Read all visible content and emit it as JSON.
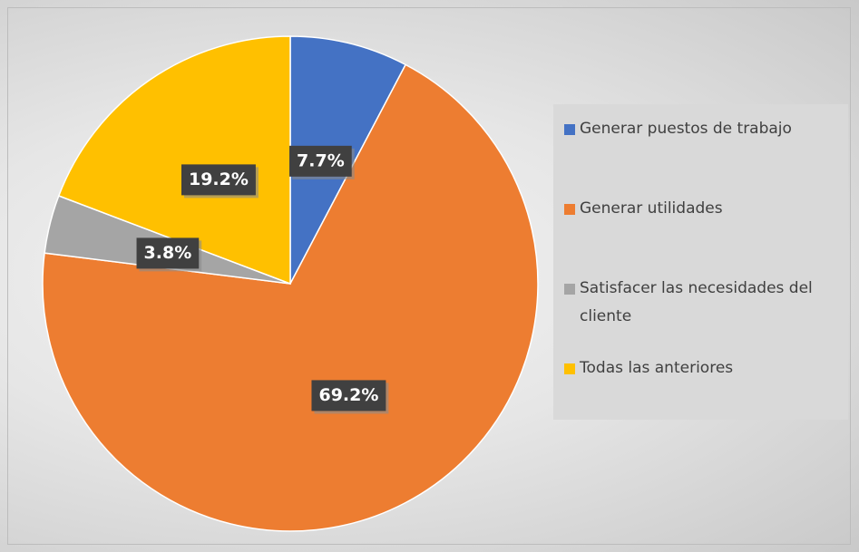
{
  "chart_data": {
    "type": "pie",
    "categories": [
      "Generar puestos de trabajo",
      "Generar utilidades",
      "Satisfacer las necesidades del cliente",
      "Todas las anteriores"
    ],
    "values": [
      7.7,
      69.2,
      3.8,
      19.2
    ],
    "value_labels": [
      "7.7%",
      "69.2%",
      "3.8%",
      "19.2%"
    ],
    "colors": [
      "#4472c4",
      "#ed7d31",
      "#a5a5a5",
      "#ffc000"
    ],
    "legend": "right"
  }
}
